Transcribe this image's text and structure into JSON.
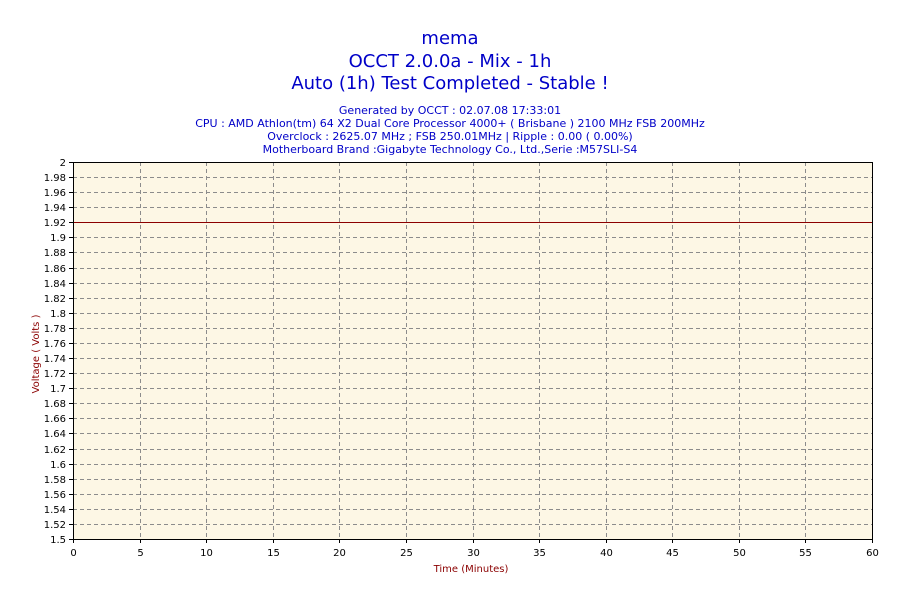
{
  "header": {
    "title": "mema",
    "subtitle": "OCCT 2.0.0a - Mix - 1h",
    "status": "Auto (1h) Test Completed - Stable !",
    "info": [
      "Generated by OCCT : 02.07.08 17:33:01",
      "CPU : AMD Athlon(tm) 64 X2 Dual Core Processor 4000+ ( Brisbane ) 2100 MHz FSB 200MHz",
      "Overclock : 2625.07 MHz ; FSB 250.01MHz | Ripple : 0.00 ( 0.00%)",
      "Motherboard Brand :Gigabyte Technology Co., Ltd.,Serie :M57SLI-S4"
    ]
  },
  "colors": {
    "title": "#0000c8",
    "axis_title": "#8b0000",
    "plot_background": "#fdf7e5",
    "grid": "#8c8c8c",
    "series": "#8b0000"
  },
  "chart_data": {
    "type": "line",
    "xlabel": "Time (Minutes)",
    "ylabel": "Voltage ( Volts )",
    "xlim": [
      0,
      60
    ],
    "ylim": [
      1.5,
      2
    ],
    "x_ticks": [
      "0",
      "5",
      "10",
      "15",
      "20",
      "25",
      "30",
      "35",
      "40",
      "45",
      "50",
      "55",
      "60"
    ],
    "y_ticks": [
      "1.5",
      "1.52",
      "1.54",
      "1.56",
      "1.58",
      "1.6",
      "1.62",
      "1.64",
      "1.66",
      "1.68",
      "1.7",
      "1.72",
      "1.74",
      "1.76",
      "1.78",
      "1.8",
      "1.82",
      "1.84",
      "1.86",
      "1.88",
      "1.9",
      "1.92",
      "1.94",
      "1.96",
      "1.98",
      "2"
    ],
    "grid": true,
    "series": [
      {
        "x": [
          0,
          60
        ],
        "y": [
          1.92,
          1.92
        ]
      }
    ]
  }
}
